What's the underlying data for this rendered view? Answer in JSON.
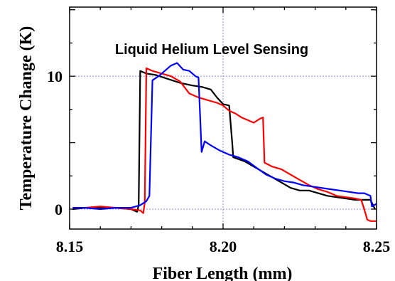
{
  "chart_data": {
    "type": "line",
    "title": "Liquid Helium Level Sensing",
    "xlabel": "Fiber Length (mm)",
    "ylabel": "Temperature Change (K)",
    "xlim": [
      8.15,
      8.25
    ],
    "ylim": [
      -1.5,
      15.2
    ],
    "xticks": [
      8.15,
      8.2,
      8.25
    ],
    "xtick_labels": [
      "8.15",
      "8.20",
      "8.25"
    ],
    "yticks": [
      0,
      10
    ],
    "ytick_labels": [
      "0",
      "10"
    ],
    "grid": true,
    "legend": "none",
    "series": [
      {
        "color": "#000000",
        "points": [
          [
            8.151,
            0.0
          ],
          [
            8.155,
            0.1
          ],
          [
            8.16,
            0.1
          ],
          [
            8.165,
            0.1
          ],
          [
            8.17,
            0.0
          ],
          [
            8.172,
            -0.2
          ],
          [
            8.1725,
            0.3
          ],
          [
            8.173,
            10.4
          ],
          [
            8.175,
            10.2
          ],
          [
            8.178,
            10.1
          ],
          [
            8.182,
            9.8
          ],
          [
            8.186,
            9.5
          ],
          [
            8.19,
            9.3
          ],
          [
            8.193,
            9.2
          ],
          [
            8.196,
            9.0
          ],
          [
            8.198,
            8.4
          ],
          [
            8.2,
            7.9
          ],
          [
            8.202,
            7.8
          ],
          [
            8.203,
            4.9
          ],
          [
            8.2033,
            3.9
          ],
          [
            8.207,
            3.6
          ],
          [
            8.21,
            3.2
          ],
          [
            8.213,
            2.8
          ],
          [
            8.216,
            2.4
          ],
          [
            8.219,
            2.0
          ],
          [
            8.222,
            1.6
          ],
          [
            8.225,
            1.4
          ],
          [
            8.228,
            1.4
          ],
          [
            8.231,
            1.2
          ],
          [
            8.234,
            1.0
          ],
          [
            8.237,
            0.9
          ],
          [
            8.24,
            0.8
          ],
          [
            8.243,
            0.7
          ],
          [
            8.246,
            0.7
          ],
          [
            8.248,
            0.7
          ],
          [
            8.2495,
            0.0
          ]
        ]
      },
      {
        "color": "#ff0000",
        "points": [
          [
            8.151,
            0.1
          ],
          [
            8.155,
            0.1
          ],
          [
            8.16,
            0.2
          ],
          [
            8.165,
            0.1
          ],
          [
            8.17,
            0.0
          ],
          [
            8.173,
            -0.1
          ],
          [
            8.174,
            -0.3
          ],
          [
            8.1745,
            0.5
          ],
          [
            8.175,
            10.6
          ],
          [
            8.177,
            10.4
          ],
          [
            8.18,
            10.2
          ],
          [
            8.183,
            10.0
          ],
          [
            8.186,
            9.6
          ],
          [
            8.189,
            8.7
          ],
          [
            8.192,
            8.4
          ],
          [
            8.195,
            8.2
          ],
          [
            8.198,
            8.0
          ],
          [
            8.2,
            7.8
          ],
          [
            8.202,
            7.4
          ],
          [
            8.204,
            7.2
          ],
          [
            8.206,
            6.9
          ],
          [
            8.208,
            6.7
          ],
          [
            8.21,
            6.5
          ],
          [
            8.212,
            6.8
          ],
          [
            8.213,
            6.9
          ],
          [
            8.2135,
            3.5
          ],
          [
            8.216,
            3.2
          ],
          [
            8.219,
            3.0
          ],
          [
            8.222,
            2.6
          ],
          [
            8.225,
            2.2
          ],
          [
            8.228,
            1.8
          ],
          [
            8.231,
            1.5
          ],
          [
            8.234,
            1.3
          ],
          [
            8.237,
            1.0
          ],
          [
            8.24,
            0.9
          ],
          [
            8.243,
            0.8
          ],
          [
            8.245,
            0.7
          ],
          [
            8.246,
            0.0
          ],
          [
            8.247,
            -0.8
          ],
          [
            8.248,
            -0.9
          ],
          [
            8.25,
            -0.9
          ]
        ]
      },
      {
        "color": "#0000ff",
        "points": [
          [
            8.151,
            0.1
          ],
          [
            8.155,
            0.1
          ],
          [
            8.16,
            0.0
          ],
          [
            8.165,
            0.1
          ],
          [
            8.17,
            0.1
          ],
          [
            8.173,
            0.3
          ],
          [
            8.175,
            0.6
          ],
          [
            8.176,
            1.0
          ],
          [
            8.177,
            9.7
          ],
          [
            8.179,
            10.0
          ],
          [
            8.181,
            10.4
          ],
          [
            8.183,
            10.8
          ],
          [
            8.185,
            11.0
          ],
          [
            8.187,
            10.5
          ],
          [
            8.189,
            10.4
          ],
          [
            8.191,
            10.0
          ],
          [
            8.192,
            9.9
          ],
          [
            8.193,
            4.3
          ],
          [
            8.194,
            5.1
          ],
          [
            8.196,
            4.8
          ],
          [
            8.199,
            4.4
          ],
          [
            8.202,
            4.1
          ],
          [
            8.205,
            3.9
          ],
          [
            8.208,
            3.6
          ],
          [
            8.211,
            3.1
          ],
          [
            8.214,
            2.6
          ],
          [
            8.217,
            2.3
          ],
          [
            8.22,
            2.1
          ],
          [
            8.223,
            2.0
          ],
          [
            8.226,
            1.8
          ],
          [
            8.229,
            1.7
          ],
          [
            8.232,
            1.6
          ],
          [
            8.235,
            1.5
          ],
          [
            8.238,
            1.4
          ],
          [
            8.241,
            1.3
          ],
          [
            8.244,
            1.2
          ],
          [
            8.246,
            1.2
          ],
          [
            8.248,
            1.0
          ],
          [
            8.2485,
            0.2
          ],
          [
            8.25,
            0.4
          ]
        ]
      }
    ]
  }
}
